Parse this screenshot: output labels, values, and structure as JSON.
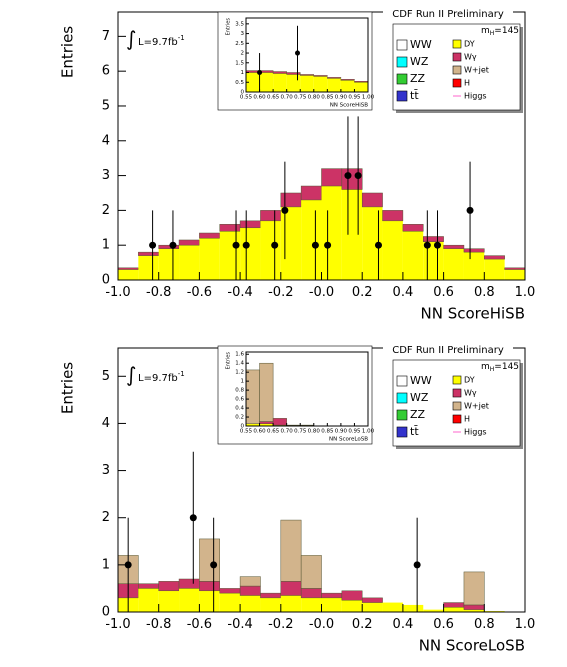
{
  "chart_data": [
    {
      "type": "histogram",
      "title": "CDF Run II Preliminary",
      "lumi_symbol": "∫",
      "lumi": "L=9.7fb",
      "lumi_exp": "-1",
      "mass_label": "m",
      "mass_sub": "H",
      "mass_value": "=145",
      "xlabel": "NN ScoreHiSB",
      "ylabel": "Entries",
      "bins": [
        -1,
        -0.9,
        -0.8,
        -0.7,
        -0.6,
        -0.5,
        -0.4,
        -0.3,
        -0.2,
        -0.1,
        0,
        0.1,
        0.2,
        0.3,
        0.4,
        0.5,
        0.6,
        0.7,
        0.8,
        0.9,
        1
      ],
      "series": [
        {
          "name": "DY",
          "color": "#ffff00",
          "values": [
            0.3,
            0.7,
            0.9,
            1.0,
            1.2,
            1.4,
            1.5,
            1.7,
            2.1,
            2.3,
            2.7,
            2.6,
            2.1,
            1.7,
            1.4,
            1.1,
            0.9,
            0.8,
            0.6,
            0.3
          ]
        },
        {
          "name": "Wγ",
          "color": "#cc3366",
          "values": [
            0.05,
            0.1,
            0.1,
            0.15,
            0.15,
            0.2,
            0.2,
            0.3,
            0.4,
            0.4,
            0.5,
            0.6,
            0.4,
            0.3,
            0.2,
            0.15,
            0.1,
            0.1,
            0.1,
            0.05
          ]
        }
      ],
      "data": {
        "x": [
          -0.83,
          -0.73,
          -0.42,
          -0.37,
          -0.23,
          -0.18,
          -0.03,
          0.03,
          0.13,
          0.18,
          0.28,
          0.52,
          0.57,
          0.73
        ],
        "values": [
          1,
          1,
          1,
          1,
          1,
          2,
          1,
          1,
          3,
          3,
          1,
          1,
          1,
          2
        ],
        "errors": [
          1,
          1,
          1,
          1,
          1,
          1.4,
          1,
          1,
          1.7,
          1.7,
          1,
          1,
          1,
          1.4
        ]
      },
      "xlim": [
        -1,
        1
      ],
      "ylim": [
        0,
        7.7
      ],
      "xticks": [
        {
          "value": -1,
          "label": "-1.0"
        },
        -0.8,
        -0.6,
        -0.4,
        -0.2,
        {
          "value": 0,
          "label": "-0.0"
        },
        0.2,
        0.4,
        0.6,
        0.8,
        {
          "value": 1,
          "label": "1.0"
        }
      ],
      "yticks": [
        0,
        1,
        2,
        3,
        4,
        5,
        6,
        7
      ],
      "legend": [
        {
          "name": "WW",
          "color": "#ffffff"
        },
        {
          "name": "WZ",
          "color": "#00ffff"
        },
        {
          "name": "ZZ",
          "color": "#33cc33"
        },
        {
          "name": "tt̄",
          "color": "#3333cc"
        },
        {
          "name": "DY",
          "color": "#ffff00"
        },
        {
          "name": "Wγ",
          "color": "#cc3366"
        },
        {
          "name": "W+jet",
          "color": "#d2b48c"
        },
        {
          "name": "H",
          "color": "#ff0000"
        },
        {
          "name": "Higgs",
          "color": "#ff66cc"
        }
      ],
      "inset": {
        "xlabel": "NN ScoreHiSB",
        "ylabel": "Entries",
        "bins": [
          0.55,
          0.6,
          0.65,
          0.7,
          0.75,
          0.8,
          0.85,
          0.9,
          0.95,
          1
        ],
        "series": [
          {
            "name": "DY",
            "color": "#ffff00",
            "values": [
              1.0,
              1.0,
              0.95,
              0.9,
              0.85,
              0.8,
              0.7,
              0.6,
              0.5
            ]
          },
          {
            "name": "Wγ",
            "color": "#cc3366",
            "values": [
              0.1,
              0.1,
              0.1,
              0.1,
              0.05,
              0.05,
              0.05,
              0.05,
              0.05
            ]
          }
        ],
        "data": {
          "x": [
            0.6,
            0.74
          ],
          "values": [
            1,
            2
          ],
          "errors": [
            1,
            1.4
          ]
        },
        "xlim": [
          0.55,
          1
        ],
        "ylim": [
          0,
          3.8
        ],
        "xticks": [
          0.55,
          {
            "value": 0.6,
            "label": "0.60"
          },
          0.65,
          {
            "value": 0.7,
            "label": "0.70"
          },
          0.75,
          {
            "value": 0.8,
            "label": "0.80"
          },
          0.85,
          {
            "value": 0.9,
            "label": "0.90"
          },
          0.95,
          {
            "value": 1,
            "label": "1.00"
          }
        ],
        "yticks": [
          0,
          0.5,
          1,
          1.5,
          2,
          2.5,
          3,
          3.5
        ]
      }
    },
    {
      "type": "histogram",
      "title": "CDF Run II Preliminary",
      "lumi_symbol": "∫",
      "lumi": "L=9.7fb",
      "lumi_exp": "-1",
      "mass_label": "m",
      "mass_sub": "H",
      "mass_value": "=145",
      "xlabel": "NN ScoreLoSB",
      "ylabel": "Entries",
      "bins": [
        -1,
        -0.9,
        -0.8,
        -0.7,
        -0.6,
        -0.5,
        -0.4,
        -0.3,
        -0.2,
        -0.1,
        0,
        0.1,
        0.2,
        0.3,
        0.4,
        0.5,
        0.6,
        0.7,
        0.8,
        0.9,
        1
      ],
      "series": [
        {
          "name": "DY",
          "color": "#ffff00",
          "values": [
            0.3,
            0.5,
            0.45,
            0.5,
            0.45,
            0.4,
            0.35,
            0.3,
            0.35,
            0.3,
            0.3,
            0.25,
            0.2,
            0.2,
            0.15,
            0.05,
            0.1,
            0.05,
            0.02,
            0.01
          ]
        },
        {
          "name": "Wγ",
          "color": "#cc3366",
          "values": [
            0.3,
            0.1,
            0.2,
            0.2,
            0.2,
            0.1,
            0.2,
            0.1,
            0.3,
            0.2,
            0.1,
            0.2,
            0.1,
            0,
            0,
            0,
            0.1,
            0.1,
            0,
            0
          ]
        },
        {
          "name": "W+jet",
          "color": "#d2b48c",
          "values": [
            0.6,
            0,
            0,
            0,
            0.9,
            0,
            0.2,
            0,
            1.3,
            0.7,
            0,
            0,
            0,
            0,
            0,
            0,
            0,
            0.7,
            0,
            0
          ]
        }
      ],
      "data": {
        "x": [
          -0.95,
          -0.63,
          -0.53,
          0.47
        ],
        "values": [
          1,
          2,
          1,
          1
        ],
        "errors": [
          1,
          1.4,
          1,
          1
        ]
      },
      "xlim": [
        -1,
        1
      ],
      "ylim": [
        0,
        5.6
      ],
      "xticks": [
        {
          "value": -1,
          "label": "-1.0"
        },
        -0.8,
        -0.6,
        -0.4,
        -0.2,
        {
          "value": 0,
          "label": "-0.0"
        },
        0.2,
        0.4,
        0.6,
        0.8,
        {
          "value": 1,
          "label": "1.0"
        }
      ],
      "yticks": [
        0,
        1,
        2,
        3,
        4,
        5
      ],
      "legend": [
        {
          "name": "WW",
          "color": "#ffffff"
        },
        {
          "name": "WZ",
          "color": "#00ffff"
        },
        {
          "name": "ZZ",
          "color": "#33cc33"
        },
        {
          "name": "tt̄",
          "color": "#3333cc"
        },
        {
          "name": "DY",
          "color": "#ffff00"
        },
        {
          "name": "Wγ",
          "color": "#cc3366"
        },
        {
          "name": "W+jet",
          "color": "#d2b48c"
        },
        {
          "name": "H",
          "color": "#ff0000"
        },
        {
          "name": "Higgs",
          "color": "#ff66cc"
        }
      ],
      "inset": {
        "xlabel": "NN ScoreLoSB",
        "ylabel": "Entries",
        "bins": [
          0.55,
          0.6,
          0.65,
          0.7,
          0.75,
          0.8,
          0.85,
          0.9,
          0.95,
          1
        ],
        "series": [
          {
            "name": "DY",
            "color": "#ffff00",
            "values": [
              0.05,
              0.05,
              0.02,
              0.01,
              0.01,
              0.01,
              0,
              0,
              0
            ]
          },
          {
            "name": "Wγ",
            "color": "#cc3366",
            "values": [
              0,
              0.05,
              0.15,
              0.01,
              0.01,
              0,
              0,
              0,
              0
            ]
          },
          {
            "name": "W+jet",
            "color": "#d2b48c",
            "values": [
              1.2,
              1.3,
              0,
              0,
              0,
              0,
              0,
              0,
              0
            ]
          }
        ],
        "data": {
          "x": [],
          "values": [],
          "errors": []
        },
        "xlim": [
          0.55,
          1
        ],
        "ylim": [
          0,
          1.65
        ],
        "xticks": [
          0.55,
          {
            "value": 0.6,
            "label": "0.60"
          },
          0.65,
          {
            "value": 0.7,
            "label": "0.70"
          },
          0.75,
          {
            "value": 0.8,
            "label": "0.80"
          },
          0.85,
          {
            "value": 0.9,
            "label": "0.90"
          },
          0.95,
          {
            "value": 1,
            "label": "1.00"
          }
        ],
        "yticks": [
          0,
          0.2,
          0.4,
          0.6,
          0.8,
          1,
          1.2,
          1.4,
          1.6
        ]
      }
    }
  ]
}
